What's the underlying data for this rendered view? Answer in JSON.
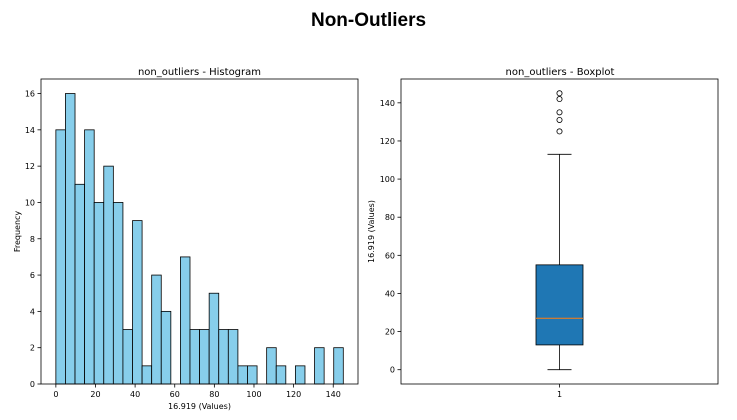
{
  "figure": {
    "title": "Non-Outliers"
  },
  "chart_data": [
    {
      "type": "bar",
      "subtype": "histogram",
      "title": "non_outliers - Histogram",
      "xlabel": "16.919 (Values)",
      "ylabel": "Frequency",
      "xlim": [
        -7.5,
        152.5
      ],
      "ylim": [
        0,
        16.8
      ],
      "xticks": [
        0,
        20,
        40,
        60,
        80,
        100,
        120,
        140
      ],
      "yticks": [
        0,
        2,
        4,
        6,
        8,
        10,
        12,
        14,
        16
      ],
      "bin_width": 4.836,
      "bin_start": 0,
      "values": [
        14,
        16,
        11,
        14,
        10,
        12,
        10,
        3,
        9,
        1,
        6,
        4,
        0,
        7,
        3,
        3,
        5,
        3,
        3,
        1,
        1,
        0,
        2,
        1,
        0,
        1,
        0,
        2,
        0,
        2
      ],
      "bar_color": "#87ceeb",
      "edge_color": "#000000",
      "grid": false
    },
    {
      "type": "boxplot",
      "title": "non_outliers - Boxplot",
      "xlabel": "",
      "ylabel": "16.919 (Values)",
      "categories": [
        "1"
      ],
      "ylim": [
        -7.5,
        152.5
      ],
      "yticks": [
        0,
        20,
        40,
        60,
        80,
        100,
        120,
        140
      ],
      "stats": {
        "whisker_low": 0,
        "q1": 13,
        "median": 27,
        "q3": 55,
        "whisker_high": 113
      },
      "fliers": [
        125,
        131,
        135,
        142,
        145
      ],
      "box_color": "#1f77b4",
      "median_color": "#ff7f0e",
      "grid": false
    }
  ]
}
